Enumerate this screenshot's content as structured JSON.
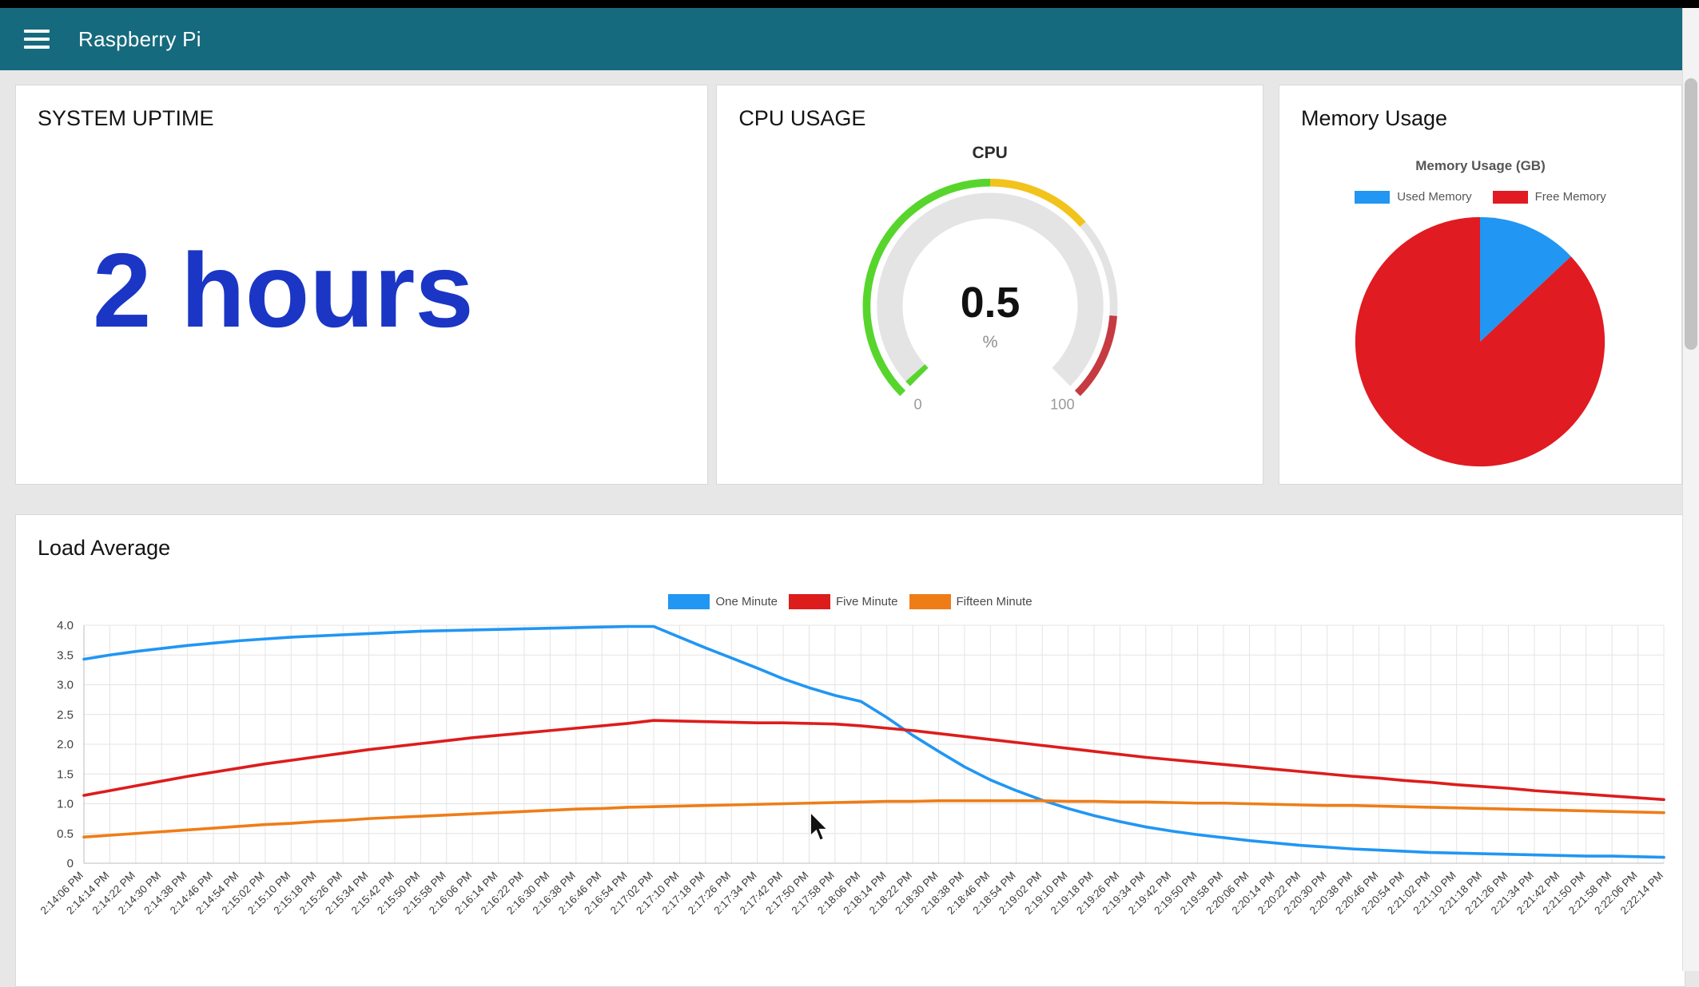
{
  "navbar": {
    "title": "Raspberry Pi"
  },
  "cards": {
    "uptime": {
      "title": "SYSTEM UPTIME",
      "value": "2 hours"
    },
    "cpu": {
      "title": "CPU USAGE"
    },
    "memory": {
      "title": "Memory Usage"
    },
    "load": {
      "title": "Load Average"
    }
  },
  "colors": {
    "navbar_bg": "#166a7d",
    "uptime_value": "#1b36c5",
    "line_blue": "#2196f3",
    "line_red": "#dd1c1c",
    "line_orange": "#ee7d18",
    "pie_blue": "#2196f3",
    "pie_red": "#e01b22",
    "gauge_green": "#57d52c",
    "gauge_yellow": "#f2c31b",
    "gauge_red": "#c63a41"
  },
  "chart_data": [
    {
      "id": "cpu-gauge",
      "type": "gauge",
      "title": "CPU",
      "value": 0.5,
      "value_label": "0.5",
      "unit": "%",
      "min": 0,
      "max": 100,
      "min_label": "0",
      "max_label": "100",
      "zones": [
        {
          "from": 0,
          "to": 50,
          "color": "#57d52c"
        },
        {
          "from": 50,
          "to": 68,
          "color": "#f2c31b"
        },
        {
          "from": 68,
          "to": 85,
          "color": "#e3e3e3"
        },
        {
          "from": 85,
          "to": 100,
          "color": "#c63a41"
        }
      ]
    },
    {
      "id": "memory-pie",
      "type": "pie",
      "title": "Memory Usage (GB)",
      "slices": [
        {
          "label": "Used Memory",
          "value": 13,
          "color": "#2196f3"
        },
        {
          "label": "Free Memory",
          "value": 87,
          "color": "#e01b22"
        }
      ]
    },
    {
      "id": "load-line",
      "type": "line",
      "title": "Load Average",
      "ylim": [
        0,
        4
      ],
      "yticks": [
        0,
        0.5,
        1.0,
        1.5,
        2.0,
        2.5,
        3.0,
        3.5,
        4.0
      ],
      "ytick_labels": [
        "0",
        "0.5",
        "1.0",
        "1.5",
        "2.0",
        "2.5",
        "3.0",
        "3.5",
        "4.0"
      ],
      "categories": [
        "2:14:06 PM",
        "2:14:14 PM",
        "2:14:22 PM",
        "2:14:30 PM",
        "2:14:38 PM",
        "2:14:46 PM",
        "2:14:54 PM",
        "2:15:02 PM",
        "2:15:10 PM",
        "2:15:18 PM",
        "2:15:26 PM",
        "2:15:34 PM",
        "2:15:42 PM",
        "2:15:50 PM",
        "2:15:58 PM",
        "2:16:06 PM",
        "2:16:14 PM",
        "2:16:22 PM",
        "2:16:30 PM",
        "2:16:38 PM",
        "2:16:46 PM",
        "2:16:54 PM",
        "2:17:02 PM",
        "2:17:10 PM",
        "2:17:18 PM",
        "2:17:26 PM",
        "2:17:34 PM",
        "2:17:42 PM",
        "2:17:50 PM",
        "2:17:58 PM",
        "2:18:06 PM",
        "2:18:14 PM",
        "2:18:22 PM",
        "2:18:30 PM",
        "2:18:38 PM",
        "2:18:46 PM",
        "2:18:54 PM",
        "2:19:02 PM",
        "2:19:10 PM",
        "2:19:18 PM",
        "2:19:26 PM",
        "2:19:34 PM",
        "2:19:42 PM",
        "2:19:50 PM",
        "2:19:58 PM",
        "2:20:06 PM",
        "2:20:14 PM",
        "2:20:22 PM",
        "2:20:30 PM",
        "2:20:38 PM",
        "2:20:46 PM",
        "2:20:54 PM",
        "2:21:02 PM",
        "2:21:10 PM",
        "2:21:18 PM",
        "2:21:26 PM",
        "2:21:34 PM",
        "2:21:42 PM",
        "2:21:50 PM",
        "2:21:58 PM",
        "2:22:06 PM",
        "2:22:14 PM"
      ],
      "series": [
        {
          "name": "One Minute",
          "color": "#2196f3",
          "values": [
            3.43,
            3.5,
            3.56,
            3.61,
            3.66,
            3.7,
            3.74,
            3.77,
            3.8,
            3.82,
            3.84,
            3.86,
            3.88,
            3.9,
            3.91,
            3.92,
            3.93,
            3.94,
            3.95,
            3.96,
            3.97,
            3.98,
            3.98,
            3.8,
            3.62,
            3.45,
            3.28,
            3.1,
            2.95,
            2.82,
            2.72,
            2.45,
            2.15,
            1.88,
            1.62,
            1.4,
            1.22,
            1.06,
            0.92,
            0.8,
            0.7,
            0.61,
            0.54,
            0.48,
            0.43,
            0.38,
            0.34,
            0.3,
            0.27,
            0.24,
            0.22,
            0.2,
            0.18,
            0.17,
            0.16,
            0.15,
            0.14,
            0.13,
            0.12,
            0.12,
            0.11,
            0.1
          ]
        },
        {
          "name": "Five Minute",
          "color": "#dd1c1c",
          "values": [
            1.14,
            1.22,
            1.3,
            1.38,
            1.46,
            1.53,
            1.6,
            1.67,
            1.73,
            1.79,
            1.85,
            1.91,
            1.96,
            2.01,
            2.06,
            2.11,
            2.15,
            2.19,
            2.23,
            2.27,
            2.31,
            2.35,
            2.4,
            2.39,
            2.38,
            2.37,
            2.36,
            2.36,
            2.35,
            2.34,
            2.31,
            2.27,
            2.23,
            2.18,
            2.13,
            2.08,
            2.03,
            1.98,
            1.93,
            1.88,
            1.83,
            1.78,
            1.74,
            1.7,
            1.66,
            1.62,
            1.58,
            1.54,
            1.5,
            1.46,
            1.43,
            1.39,
            1.36,
            1.32,
            1.29,
            1.26,
            1.22,
            1.19,
            1.16,
            1.13,
            1.1,
            1.07
          ]
        },
        {
          "name": "Fifteen Minute",
          "color": "#ee7d18",
          "values": [
            0.44,
            0.47,
            0.5,
            0.53,
            0.56,
            0.59,
            0.62,
            0.65,
            0.67,
            0.7,
            0.72,
            0.75,
            0.77,
            0.79,
            0.81,
            0.83,
            0.85,
            0.87,
            0.89,
            0.91,
            0.92,
            0.94,
            0.95,
            0.96,
            0.97,
            0.98,
            0.99,
            1.0,
            1.01,
            1.02,
            1.03,
            1.04,
            1.04,
            1.05,
            1.05,
            1.05,
            1.05,
            1.05,
            1.04,
            1.04,
            1.03,
            1.03,
            1.02,
            1.01,
            1.01,
            1.0,
            0.99,
            0.98,
            0.97,
            0.97,
            0.96,
            0.95,
            0.94,
            0.93,
            0.92,
            0.91,
            0.9,
            0.89,
            0.88,
            0.87,
            0.86,
            0.85
          ]
        }
      ]
    }
  ]
}
